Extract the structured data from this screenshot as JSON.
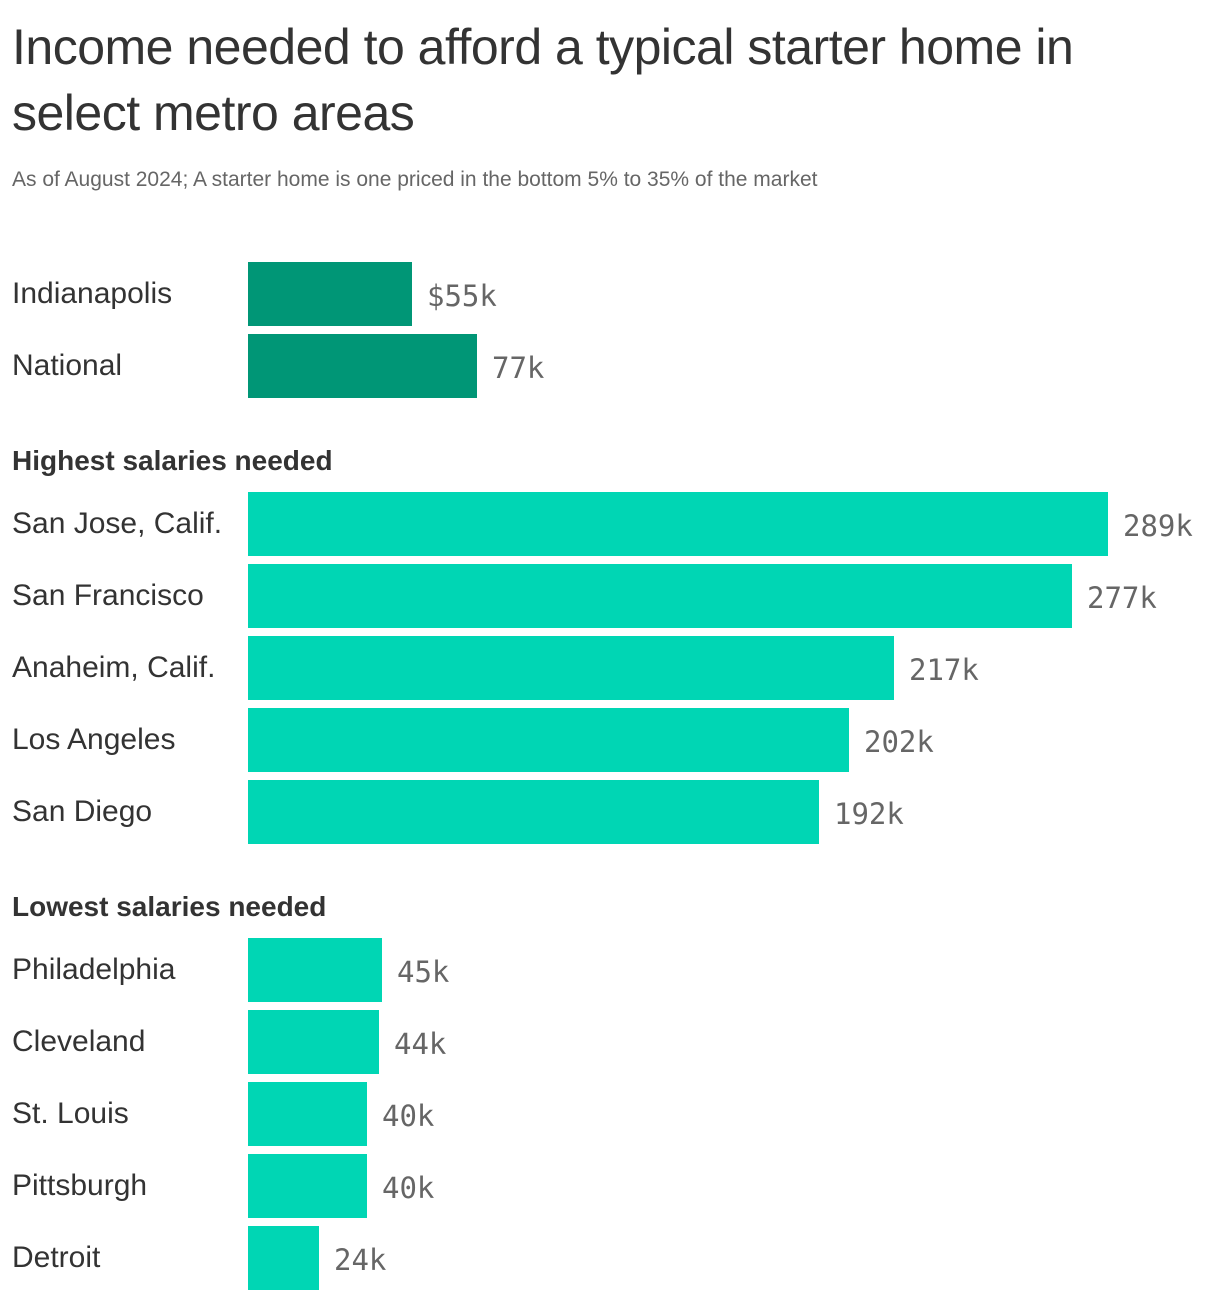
{
  "chart_data": {
    "type": "bar",
    "title": "Income needed to afford a typical starter home in select metro areas",
    "subtitle": "As of August 2024; A starter home is one priced in the bottom 5% to 35% of the market",
    "groups": [
      {
        "heading": "",
        "color": "#009676",
        "rows": [
          {
            "category": "Indianapolis",
            "value": 55,
            "label": "$55k"
          },
          {
            "category": "National",
            "value": 77,
            "label": "77k"
          }
        ]
      },
      {
        "heading": "Highest salaries needed",
        "color": "#00d6b4",
        "rows": [
          {
            "category": "San Jose, Calif.",
            "value": 289,
            "label": "289k"
          },
          {
            "category": "San Francisco",
            "value": 277,
            "label": "277k"
          },
          {
            "category": "Anaheim, Calif.",
            "value": 217,
            "label": "217k"
          },
          {
            "category": "Los Angeles",
            "value": 202,
            "label": "202k"
          },
          {
            "category": "San Diego",
            "value": 192,
            "label": "192k"
          }
        ]
      },
      {
        "heading": "Lowest salaries needed",
        "color": "#00d6b4",
        "rows": [
          {
            "category": "Philadelphia",
            "value": 45,
            "label": "45k"
          },
          {
            "category": "Cleveland",
            "value": 44,
            "label": "44k"
          },
          {
            "category": "St. Louis",
            "value": 40,
            "label": "40k"
          },
          {
            "category": "Pittsburgh",
            "value": 40,
            "label": "40k"
          },
          {
            "category": "Detroit",
            "value": 24,
            "label": "24k"
          }
        ]
      }
    ],
    "xlim": [
      0,
      289
    ],
    "grid": false,
    "legend": "none"
  }
}
